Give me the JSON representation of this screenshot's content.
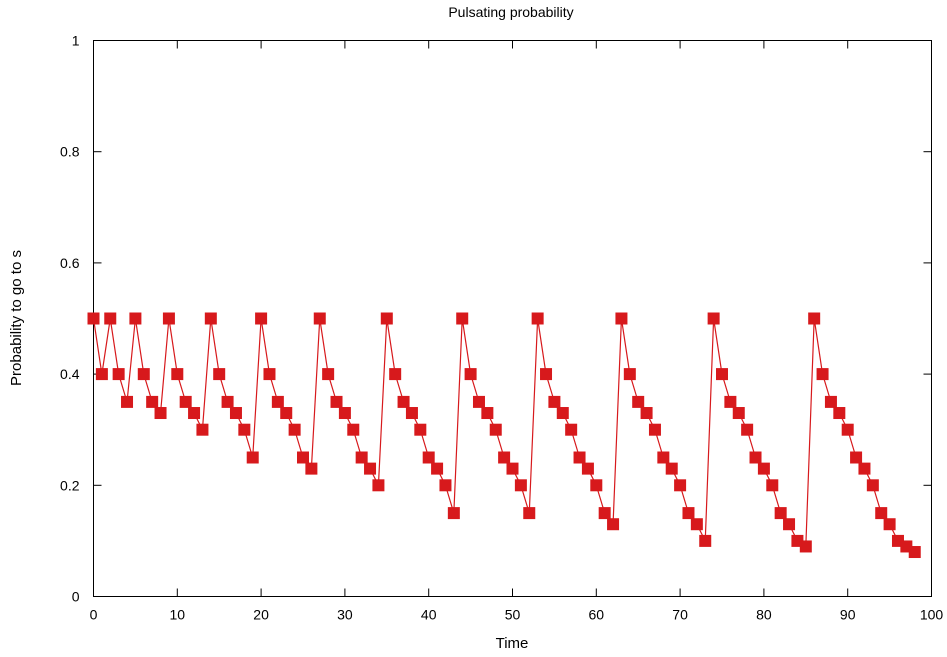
{
  "chart_data": {
    "type": "line",
    "title": "Pulsating probability",
    "xlabel": "Time",
    "ylabel": "Probability to go to s",
    "xlim": [
      0,
      100
    ],
    "ylim": [
      0,
      1
    ],
    "xticks": [
      0,
      10,
      20,
      30,
      40,
      50,
      60,
      70,
      80,
      90,
      100
    ],
    "yticks": [
      0,
      0.2,
      0.4,
      0.6,
      0.8,
      1
    ],
    "ytick_labels": [
      "0",
      "0.2",
      "0.4",
      "0.6",
      "0.8",
      "1"
    ],
    "grid": false,
    "marker": "square",
    "color": "#d7191c",
    "series": [
      {
        "x": [
          0,
          1,
          2,
          3,
          4,
          5,
          6,
          7,
          8,
          9,
          10,
          11,
          12,
          13,
          14,
          15,
          16,
          17,
          18,
          19,
          20,
          21,
          22,
          23,
          24,
          25,
          26,
          27,
          28,
          29,
          30,
          31,
          32,
          33,
          34,
          35,
          36,
          37,
          38,
          39,
          40,
          41,
          42,
          43,
          44,
          45,
          46,
          47,
          48,
          49,
          50,
          51,
          52,
          53,
          54,
          55,
          56,
          57,
          58,
          59,
          60,
          61,
          62,
          63,
          64,
          65,
          66,
          67,
          68,
          69,
          70,
          71,
          72,
          73,
          74,
          75,
          76,
          77,
          78,
          79,
          80,
          81,
          82,
          83,
          84,
          85,
          86,
          87,
          88,
          89,
          90,
          91,
          92,
          93,
          94,
          95,
          96,
          97,
          98
        ],
        "y": [
          0.5,
          0.4,
          0.5,
          0.4,
          0.35,
          0.5,
          0.4,
          0.35,
          0.33,
          0.5,
          0.4,
          0.35,
          0.33,
          0.3,
          0.5,
          0.4,
          0.35,
          0.33,
          0.3,
          0.25,
          0.5,
          0.4,
          0.35,
          0.33,
          0.3,
          0.25,
          0.23,
          0.5,
          0.4,
          0.35,
          0.33,
          0.3,
          0.25,
          0.23,
          0.2,
          0.5,
          0.4,
          0.35,
          0.33,
          0.3,
          0.25,
          0.23,
          0.2,
          0.15,
          0.5,
          0.4,
          0.35,
          0.33,
          0.3,
          0.25,
          0.23,
          0.2,
          0.15,
          0.5,
          0.4,
          0.35,
          0.33,
          0.3,
          0.25,
          0.23,
          0.2,
          0.15,
          0.13,
          0.5,
          0.4,
          0.35,
          0.33,
          0.3,
          0.25,
          0.23,
          0.2,
          0.15,
          0.13,
          0.1,
          0.5,
          0.4,
          0.35,
          0.33,
          0.3,
          0.25,
          0.23,
          0.2,
          0.15,
          0.13,
          0.1,
          0.09,
          0.5,
          0.4,
          0.35,
          0.33,
          0.3,
          0.25,
          0.23,
          0.2,
          0.15,
          0.13,
          0.1,
          0.09,
          0.08
        ]
      }
    ]
  }
}
